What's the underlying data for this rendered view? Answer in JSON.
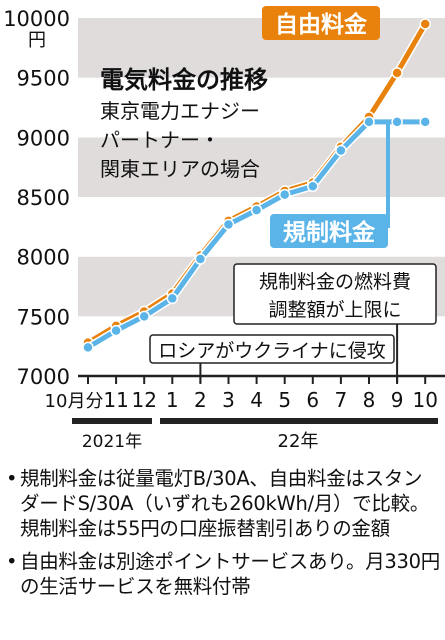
{
  "chart_data": {
    "type": "line",
    "title": "電気料金の推移",
    "subtitle_lines": [
      "東京電力エナジー",
      "パートナー・",
      "関東エリアの場合"
    ],
    "y_unit": "円",
    "ylim": [
      7000,
      10000
    ],
    "yticks": [
      7000,
      7500,
      8000,
      8500,
      9000,
      9500,
      10000
    ],
    "x_labels": [
      "10月分",
      "11",
      "12",
      "1",
      "2",
      "3",
      "4",
      "5",
      "6",
      "7",
      "8",
      "9",
      "10"
    ],
    "year_labels": [
      "2021年",
      "22年"
    ],
    "series": [
      {
        "name": "自由料金",
        "color": "#e8820c",
        "values": [
          7280,
          7420,
          7540,
          7690,
          8010,
          8300,
          8420,
          8550,
          8620,
          8920,
          9170,
          9540,
          9950
        ]
      },
      {
        "name": "規制料金",
        "color": "#5ab4e8",
        "values": [
          7240,
          7380,
          7500,
          7650,
          7980,
          8270,
          8390,
          8520,
          8590,
          8890,
          9130,
          9130,
          9130
        ]
      }
    ],
    "annotations": [
      {
        "text": "ロシアがウクライナに侵攻",
        "x_index": 4
      },
      {
        "lines": [
          "規制料金の燃料費",
          "調整額が上限に"
        ],
        "x_index": 11
      }
    ]
  },
  "notes": [
    "規制料金は従量電灯B/30A、自由料金はスタンダードS/30A（いずれも260kWh/月）で比較。規制料金は55円の口座振替割引ありの金額",
    "自由料金は別途ポイントサービスあり。月330円の生活サービスを無料付帯"
  ],
  "bullet": "•"
}
